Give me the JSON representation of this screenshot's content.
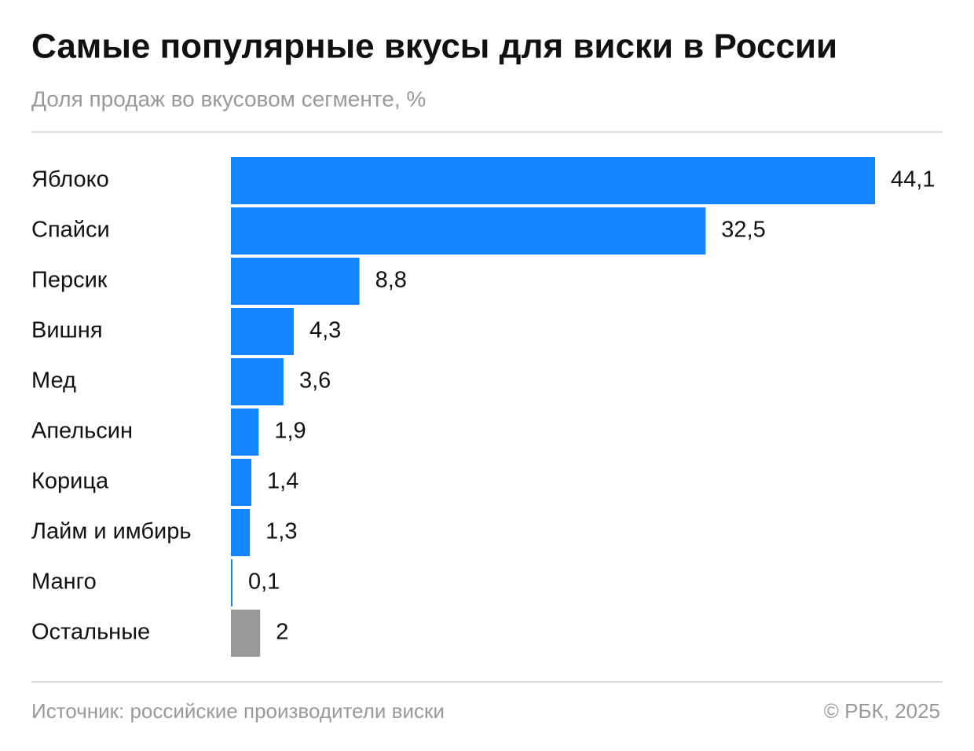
{
  "chart_data": {
    "type": "hbar",
    "title": "Самые популярные вкусы для виски в России",
    "subtitle": "Доля продаж во вкусовом сегменте, %",
    "categories": [
      "Яблоко",
      "Спайси",
      "Персик",
      "Вишня",
      "Мед",
      "Апельсин",
      "Корица",
      "Лайм и имбирь",
      "Манго",
      "Остальные"
    ],
    "values": [
      44.1,
      32.5,
      8.8,
      4.3,
      3.6,
      1.9,
      1.4,
      1.3,
      0.1,
      2
    ],
    "value_labels": [
      "44,1",
      "32,5",
      "8,8",
      "4,3",
      "3,6",
      "1,9",
      "1,4",
      "1,3",
      "0,1",
      "2"
    ],
    "colors": [
      "#1487ff",
      "#1487ff",
      "#1487ff",
      "#1487ff",
      "#1487ff",
      "#1487ff",
      "#1487ff",
      "#1487ff",
      "#1487ff",
      "#999999"
    ],
    "source": "Источник: российские производители виски",
    "credit": "© РБК, 2025"
  }
}
